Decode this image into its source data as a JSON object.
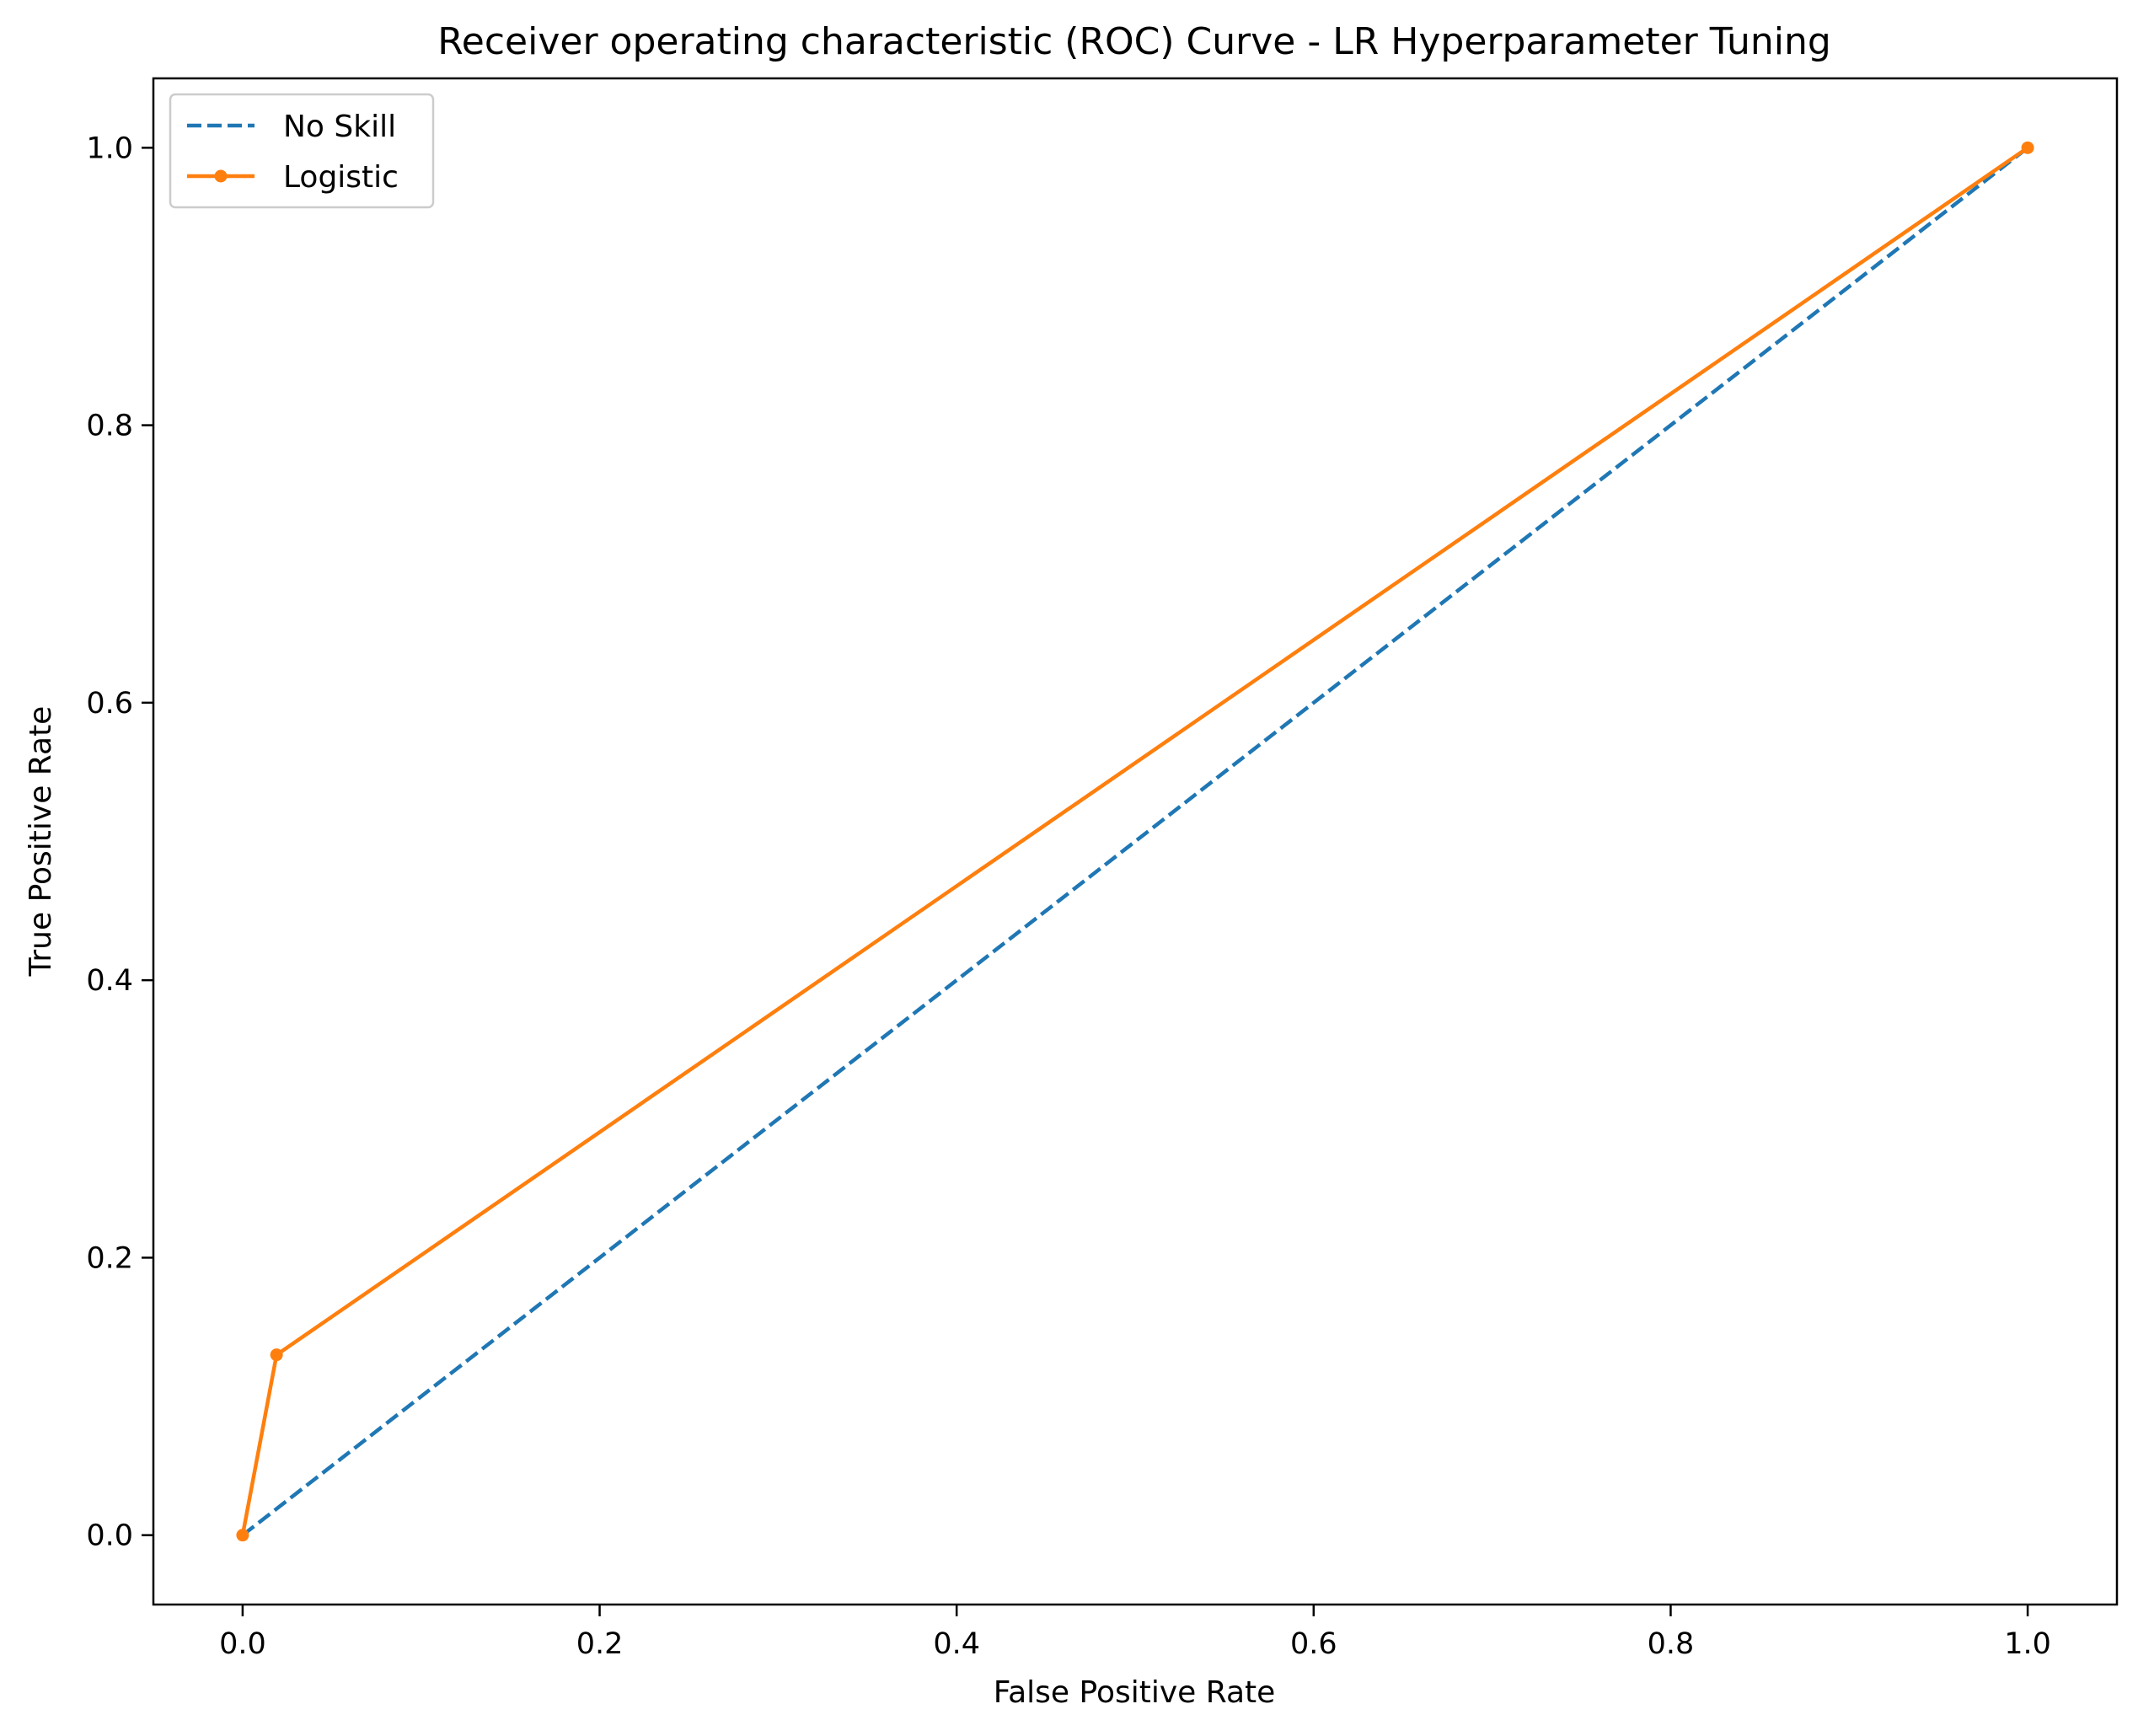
{
  "chart_data": {
    "type": "line",
    "title": "Receiver operating characteristic (ROC) Curve - LR Hyperparameter Tuning",
    "xlabel": "False Positive Rate",
    "ylabel": "True Positive Rate",
    "xlim": [
      -0.05,
      1.05
    ],
    "ylim": [
      -0.05,
      1.05
    ],
    "x_ticks": [
      0.0,
      0.2,
      0.4,
      0.6,
      0.8,
      1.0
    ],
    "y_ticks": [
      0.0,
      0.2,
      0.4,
      0.6,
      0.8,
      1.0
    ],
    "x_tick_labels": [
      "0.0",
      "0.2",
      "0.4",
      "0.6",
      "0.8",
      "1.0"
    ],
    "y_tick_labels": [
      "0.0",
      "0.2",
      "0.4",
      "0.6",
      "0.8",
      "1.0"
    ],
    "grid": false,
    "legend_position": "top-left",
    "series": [
      {
        "name": "No Skill",
        "color": "#1f77b4",
        "linestyle": "dashed",
        "marker": "none",
        "x": [
          0.0,
          1.0
        ],
        "y": [
          0.0,
          1.0
        ]
      },
      {
        "name": "Logistic",
        "color": "#ff7f0e",
        "linestyle": "solid",
        "marker": "dot",
        "x": [
          0.0,
          0.019,
          1.0
        ],
        "y": [
          0.0,
          0.13,
          1.0
        ]
      }
    ]
  }
}
